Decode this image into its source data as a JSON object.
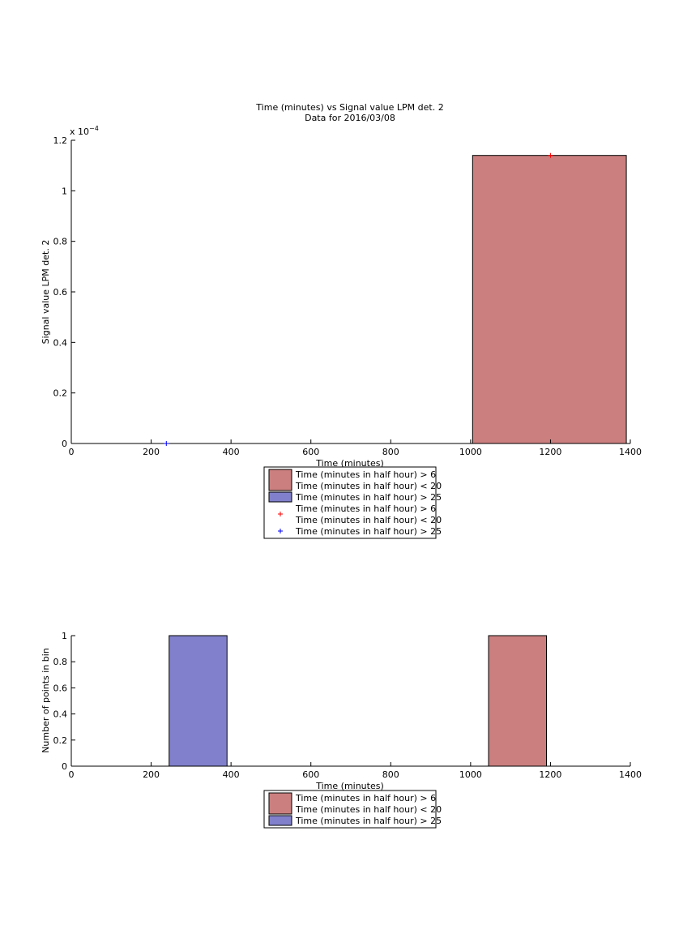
{
  "chart_data": [
    {
      "type": "bar",
      "title": "Time (minutes) vs Signal value LPM det. 2",
      "subtitle": "Data for 2016/03/08",
      "xlabel": "Time (minutes)",
      "ylabel": "Signal value LPM det. 2",
      "exponent_label": "x 10",
      "exponent_power": "−4",
      "xlim": [
        0,
        1400
      ],
      "ylim": [
        0,
        0.00012
      ],
      "xticks": [
        0,
        200,
        400,
        600,
        800,
        1000,
        1200,
        1400
      ],
      "yticks": [
        0,
        2e-05,
        4e-05,
        6e-05,
        8e-05,
        0.0001,
        0.00012
      ],
      "ytick_labels": [
        "0",
        "0.2",
        "0.4",
        "0.6",
        "0.8",
        "1",
        "1.2"
      ],
      "grid": false,
      "legend_position": "below",
      "bars": [
        {
          "series": 0,
          "x0": 1005,
          "x1": 1390,
          "value": 0.000114
        },
        {
          "series": 1,
          "x0": 238,
          "x1": 238,
          "value": 0
        }
      ],
      "points": [
        {
          "series": 0,
          "x": 1200,
          "y": 0.000114
        },
        {
          "series": 1,
          "x": 238,
          "y": 0
        }
      ],
      "legend": [
        {
          "kind": "patch",
          "color": "#cb7f7f",
          "lines": [
            "Time (minutes in half hour) > 6",
            "Time (minutes in half hour) < 20"
          ]
        },
        {
          "kind": "patch",
          "color": "#8080cc",
          "lines": [
            "Time (minutes in half hour) > 25"
          ]
        },
        {
          "kind": "marker",
          "color": "#ff0000",
          "lines": [
            "Time (minutes in half hour) > 6",
            "Time (minutes in half hour) < 20"
          ]
        },
        {
          "kind": "marker",
          "color": "#0000ff",
          "lines": [
            "Time (minutes in half hour) > 25"
          ]
        }
      ]
    },
    {
      "type": "bar",
      "title": "",
      "xlabel": "Time (minutes)",
      "ylabel": "Number of points in bin",
      "xlim": [
        0,
        1400
      ],
      "ylim": [
        0,
        1
      ],
      "xticks": [
        0,
        200,
        400,
        600,
        800,
        1000,
        1200,
        1400
      ],
      "yticks": [
        0,
        0.2,
        0.4,
        0.6,
        0.8,
        1
      ],
      "ytick_labels": [
        "0",
        "0.2",
        "0.4",
        "0.6",
        "0.8",
        "1"
      ],
      "grid": false,
      "legend_position": "below",
      "bars": [
        {
          "series": 1,
          "x0": 245,
          "x1": 390,
          "value": 1
        },
        {
          "series": 0,
          "x0": 1045,
          "x1": 1190,
          "value": 1
        }
      ],
      "legend": [
        {
          "kind": "patch",
          "color": "#cb7f7f",
          "lines": [
            "Time (minutes in half hour) > 6",
            "Time (minutes in half hour) < 20"
          ]
        },
        {
          "kind": "patch",
          "color": "#8080cc",
          "lines": [
            "Time (minutes in half hour) > 25"
          ]
        }
      ]
    }
  ],
  "colors": {
    "series_0_fill": "#cb7f7f",
    "series_1_fill": "#8080cc",
    "series_0_marker": "#ff0000",
    "series_1_marker": "#0000ff"
  }
}
